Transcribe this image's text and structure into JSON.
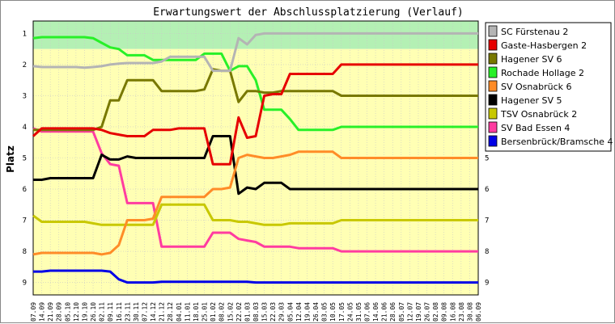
{
  "chart_data": {
    "type": "line",
    "title": "Erwartungswert der Abschlussplatzierung (Verlauf)",
    "ylabel": "Platz",
    "ylim": [
      0.6,
      9.4
    ],
    "y_ticks": [
      "1",
      "2",
      "3",
      "4",
      "5",
      "6",
      "7",
      "8",
      "9"
    ],
    "y_inverted": true,
    "grid": true,
    "bands": [
      {
        "from": 0.6,
        "to": 1.5,
        "color": "#b4f0b4"
      },
      {
        "from": 1.5,
        "to": 9.4,
        "color": "#ffffb4"
      }
    ],
    "legend_position": "right",
    "x": [
      "07.09",
      "14.09",
      "21.09",
      "28.09",
      "05.10",
      "12.10",
      "19.10",
      "26.10",
      "02.11",
      "09.11",
      "16.11",
      "23.11",
      "30.11",
      "07.12",
      "14.12",
      "21.12",
      "28.12",
      "04.01",
      "11.01",
      "18.01",
      "25.01",
      "01.02",
      "08.02",
      "15.02",
      "22.02",
      "01.03",
      "08.03",
      "15.03",
      "22.03",
      "29.03",
      "05.04",
      "12.04",
      "19.04",
      "26.04",
      "03.05",
      "10.05",
      "17.05",
      "24.05",
      "31.05",
      "07.06",
      "14.06",
      "21.06",
      "28.06",
      "05.07",
      "12.07",
      "19.07",
      "26.07",
      "02.08",
      "09.08",
      "16.08",
      "23.08",
      "30.08",
      "06.09"
    ],
    "series": [
      {
        "name": "SC Fürstenau 2",
        "color": "#b4b4b4",
        "values": [
          2.05,
          2.08,
          2.08,
          2.08,
          2.08,
          2.08,
          2.1,
          2.08,
          2.05,
          2.0,
          1.97,
          1.95,
          1.95,
          1.95,
          1.95,
          1.9,
          1.75,
          1.75,
          1.75,
          1.75,
          1.75,
          2.2,
          2.2,
          2.2,
          1.15,
          1.35,
          1.05,
          1.0,
          1.0,
          1.0,
          1.0,
          1.0,
          1.0,
          1.0,
          1.0,
          1.0,
          1.0,
          1.0,
          1.0,
          1.0,
          1.0,
          1.0,
          1.0,
          1.0,
          1.0,
          1.0,
          1.0,
          1.0,
          1.0,
          1.0,
          1.0,
          1.0,
          1.0
        ]
      },
      {
        "name": "Gaste-Hasbergen 2",
        "color": "#e60000",
        "values": [
          4.3,
          4.05,
          4.05,
          4.05,
          4.05,
          4.05,
          4.05,
          4.05,
          4.1,
          4.2,
          4.25,
          4.3,
          4.3,
          4.3,
          4.1,
          4.1,
          4.1,
          4.05,
          4.05,
          4.05,
          4.05,
          5.2,
          5.2,
          5.2,
          3.7,
          4.35,
          4.3,
          3.0,
          2.95,
          2.95,
          2.3,
          2.3,
          2.3,
          2.3,
          2.3,
          2.3,
          2.0,
          2.0,
          2.0,
          2.0,
          2.0,
          2.0,
          2.0,
          2.0,
          2.0,
          2.0,
          2.0,
          2.0,
          2.0,
          2.0,
          2.0,
          2.0,
          2.0
        ]
      },
      {
        "name": "Hagener SV 6",
        "color": "#787800",
        "values": [
          4.1,
          4.1,
          4.1,
          4.1,
          4.1,
          4.1,
          4.1,
          4.1,
          4.0,
          3.15,
          3.15,
          2.5,
          2.5,
          2.5,
          2.5,
          2.85,
          2.85,
          2.85,
          2.85,
          2.85,
          2.8,
          2.15,
          2.2,
          2.2,
          3.2,
          2.85,
          2.85,
          2.9,
          2.9,
          2.85,
          2.85,
          2.85,
          2.85,
          2.85,
          2.85,
          2.85,
          3.0,
          3.0,
          3.0,
          3.0,
          3.0,
          3.0,
          3.0,
          3.0,
          3.0,
          3.0,
          3.0,
          3.0,
          3.0,
          3.0,
          3.0,
          3.0,
          3.0
        ]
      },
      {
        "name": "Rochade Hollage 2",
        "color": "#28f028",
        "values": [
          1.15,
          1.12,
          1.12,
          1.12,
          1.12,
          1.12,
          1.12,
          1.15,
          1.3,
          1.45,
          1.5,
          1.7,
          1.7,
          1.7,
          1.85,
          1.85,
          1.85,
          1.85,
          1.85,
          1.85,
          1.65,
          1.65,
          1.65,
          2.2,
          2.05,
          2.05,
          2.5,
          3.45,
          3.45,
          3.45,
          3.75,
          4.1,
          4.1,
          4.1,
          4.1,
          4.1,
          4.0,
          4.0,
          4.0,
          4.0,
          4.0,
          4.0,
          4.0,
          4.0,
          4.0,
          4.0,
          4.0,
          4.0,
          4.0,
          4.0,
          4.0,
          4.0,
          4.0
        ]
      },
      {
        "name": "SV Osnabrück 6",
        "color": "#ff8c28",
        "values": [
          8.1,
          8.05,
          8.05,
          8.05,
          8.05,
          8.05,
          8.05,
          8.05,
          8.1,
          8.05,
          7.8,
          7.0,
          7.0,
          7.0,
          6.95,
          6.25,
          6.25,
          6.25,
          6.25,
          6.25,
          6.25,
          6.0,
          6.0,
          5.95,
          5.0,
          4.9,
          4.95,
          5.0,
          5.0,
          4.95,
          4.9,
          4.8,
          4.8,
          4.8,
          4.8,
          4.8,
          5.0,
          5.0,
          5.0,
          5.0,
          5.0,
          5.0,
          5.0,
          5.0,
          5.0,
          5.0,
          5.0,
          5.0,
          5.0,
          5.0,
          5.0,
          5.0,
          5.0
        ]
      },
      {
        "name": "Hagener SV 5",
        "color": "#000000",
        "values": [
          5.7,
          5.7,
          5.65,
          5.65,
          5.65,
          5.65,
          5.65,
          5.65,
          4.9,
          5.05,
          5.05,
          4.95,
          5.0,
          5.0,
          5.0,
          5.0,
          5.0,
          5.0,
          5.0,
          5.0,
          5.0,
          4.3,
          4.3,
          4.3,
          6.15,
          5.95,
          6.0,
          5.8,
          5.8,
          5.8,
          6.0,
          6.0,
          6.0,
          6.0,
          6.0,
          6.0,
          6.0,
          6.0,
          6.0,
          6.0,
          6.0,
          6.0,
          6.0,
          6.0,
          6.0,
          6.0,
          6.0,
          6.0,
          6.0,
          6.0,
          6.0,
          6.0,
          6.0
        ]
      },
      {
        "name": "TSV Osnabrück 2",
        "color": "#c8c800",
        "values": [
          6.85,
          7.05,
          7.05,
          7.05,
          7.05,
          7.05,
          7.05,
          7.1,
          7.15,
          7.15,
          7.15,
          7.15,
          7.15,
          7.15,
          7.15,
          6.5,
          6.5,
          6.5,
          6.5,
          6.5,
          6.5,
          7.0,
          7.0,
          7.0,
          7.05,
          7.05,
          7.1,
          7.15,
          7.15,
          7.15,
          7.1,
          7.1,
          7.1,
          7.1,
          7.1,
          7.1,
          7.0,
          7.0,
          7.0,
          7.0,
          7.0,
          7.0,
          7.0,
          7.0,
          7.0,
          7.0,
          7.0,
          7.0,
          7.0,
          7.0,
          7.0,
          7.0,
          7.0
        ]
      },
      {
        "name": "SV Bad Essen 4",
        "color": "#ff3ca0",
        "values": [
          4.05,
          4.15,
          4.15,
          4.15,
          4.15,
          4.15,
          4.15,
          4.15,
          4.85,
          5.2,
          5.25,
          6.45,
          6.45,
          6.45,
          6.45,
          7.85,
          7.85,
          7.85,
          7.85,
          7.85,
          7.85,
          7.4,
          7.4,
          7.4,
          7.6,
          7.65,
          7.7,
          7.85,
          7.85,
          7.85,
          7.85,
          7.9,
          7.9,
          7.9,
          7.9,
          7.9,
          8.0,
          8.0,
          8.0,
          8.0,
          8.0,
          8.0,
          8.0,
          8.0,
          8.0,
          8.0,
          8.0,
          8.0,
          8.0,
          8.0,
          8.0,
          8.0,
          8.0
        ]
      },
      {
        "name": "Bersenbrück/Bramsche 4",
        "color": "#0000e6",
        "values": [
          8.65,
          8.65,
          8.62,
          8.62,
          8.62,
          8.62,
          8.62,
          8.62,
          8.62,
          8.65,
          8.9,
          9.0,
          9.0,
          9.0,
          9.0,
          8.98,
          8.98,
          8.98,
          8.98,
          8.98,
          8.98,
          8.98,
          8.98,
          8.98,
          8.98,
          8.98,
          9.0,
          9.0,
          9.0,
          9.0,
          9.0,
          9.0,
          9.0,
          9.0,
          9.0,
          9.0,
          9.0,
          9.0,
          9.0,
          9.0,
          9.0,
          9.0,
          9.0,
          9.0,
          9.0,
          9.0,
          9.0,
          9.0,
          9.0,
          9.0,
          9.0,
          9.0,
          9.0
        ]
      }
    ]
  }
}
